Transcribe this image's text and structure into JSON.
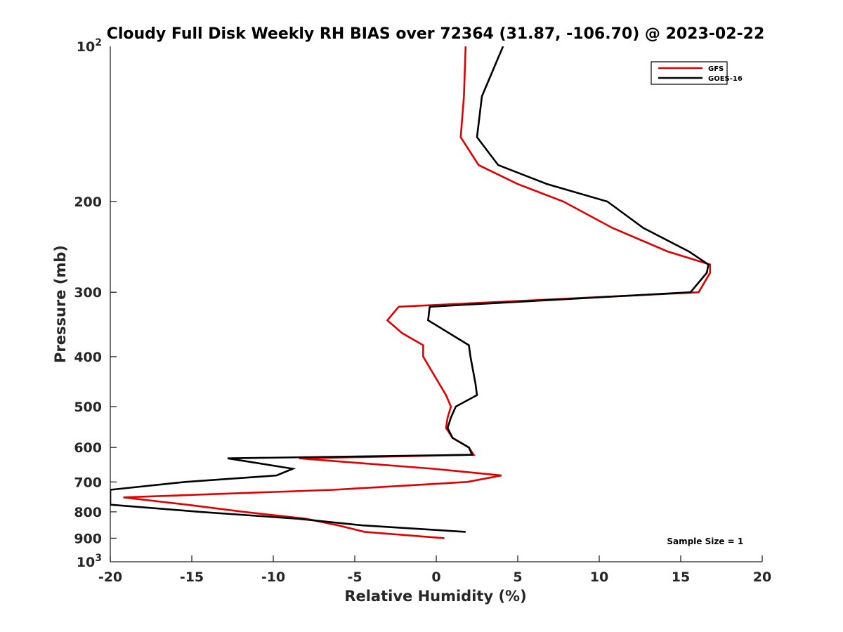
{
  "chart_data": {
    "type": "line",
    "title": "Cloudy Full Disk Weekly RH BIAS over 72364 (31.87, -106.70) @ 2023-02-22",
    "xlabel": "Relative Humidity (%)",
    "ylabel": "Pressure (mb)",
    "xlim": [
      -20,
      20
    ],
    "ylim": [
      100,
      1000
    ],
    "y_scale": "log",
    "y_reversed": true,
    "grid": false,
    "legend_position": "top-right",
    "x_ticks": [
      -20,
      -15,
      -10,
      -5,
      0,
      5,
      10,
      15,
      20
    ],
    "x_tick_labels": [
      "-20",
      "-15",
      "-10",
      "-5",
      "0",
      "5",
      "10",
      "15",
      "20"
    ],
    "y_ticks": [
      200,
      300,
      400,
      500,
      600,
      700,
      800,
      900
    ],
    "y_tick_labels": [
      "200",
      "300",
      "400",
      "500",
      "600",
      "700",
      "800",
      "900"
    ],
    "y_decade_labels": [
      {
        "value": 100,
        "base": "10",
        "exp": "2"
      },
      {
        "value": 1000,
        "base": "10",
        "exp": "3"
      }
    ],
    "series": [
      {
        "name": "GFS",
        "color": "#e00000",
        "points": [
          [
            1.8,
            100
          ],
          [
            1.7,
            125
          ],
          [
            1.5,
            150
          ],
          [
            2.6,
            170
          ],
          [
            5.0,
            185
          ],
          [
            7.8,
            200
          ],
          [
            10.8,
            225
          ],
          [
            14.2,
            250
          ],
          [
            16.8,
            265
          ],
          [
            16.8,
            275
          ],
          [
            16.1,
            300
          ],
          [
            -2.3,
            320
          ],
          [
            -3.0,
            340
          ],
          [
            -2.1,
            360
          ],
          [
            -0.8,
            380
          ],
          [
            -0.8,
            400
          ],
          [
            0.6,
            475
          ],
          [
            0.9,
            500
          ],
          [
            0.7,
            525
          ],
          [
            0.6,
            550
          ],
          [
            1.0,
            575
          ],
          [
            2.0,
            600
          ],
          [
            2.3,
            620
          ],
          [
            -8.4,
            630
          ],
          [
            -0.2,
            660
          ],
          [
            4.0,
            680
          ],
          [
            1.9,
            700
          ],
          [
            -6.3,
            725
          ],
          [
            -19.2,
            750
          ],
          [
            -15.3,
            775
          ],
          [
            -11.8,
            800
          ],
          [
            -8.0,
            825
          ],
          [
            -6.0,
            850
          ],
          [
            -4.4,
            875
          ],
          [
            0.5,
            900
          ]
        ]
      },
      {
        "name": "GOES-16",
        "color": "#000000",
        "points": [
          [
            4.1,
            100
          ],
          [
            2.8,
            125
          ],
          [
            2.5,
            150
          ],
          [
            3.8,
            170
          ],
          [
            6.8,
            185
          ],
          [
            10.5,
            200
          ],
          [
            12.7,
            225
          ],
          [
            15.5,
            250
          ],
          [
            16.7,
            265
          ],
          [
            16.6,
            275
          ],
          [
            15.6,
            300
          ],
          [
            -0.4,
            320
          ],
          [
            -0.5,
            340
          ],
          [
            2.0,
            380
          ],
          [
            2.1,
            400
          ],
          [
            2.4,
            450
          ],
          [
            2.5,
            475
          ],
          [
            1.2,
            500
          ],
          [
            0.9,
            525
          ],
          [
            0.7,
            550
          ],
          [
            1.0,
            575
          ],
          [
            2.0,
            600
          ],
          [
            2.2,
            620
          ],
          [
            -12.8,
            630
          ],
          [
            -8.8,
            660
          ],
          [
            -9.8,
            680
          ],
          [
            -15.4,
            700
          ],
          [
            -20.0,
            725
          ],
          [
            -20.0,
            775
          ],
          [
            -14.5,
            800
          ],
          [
            -8.5,
            825
          ],
          [
            -4.5,
            850
          ],
          [
            1.8,
            875
          ]
        ]
      }
    ],
    "annotations": [
      {
        "text": "Sample Size = 1",
        "x": 16.5,
        "y": 910
      }
    ]
  }
}
